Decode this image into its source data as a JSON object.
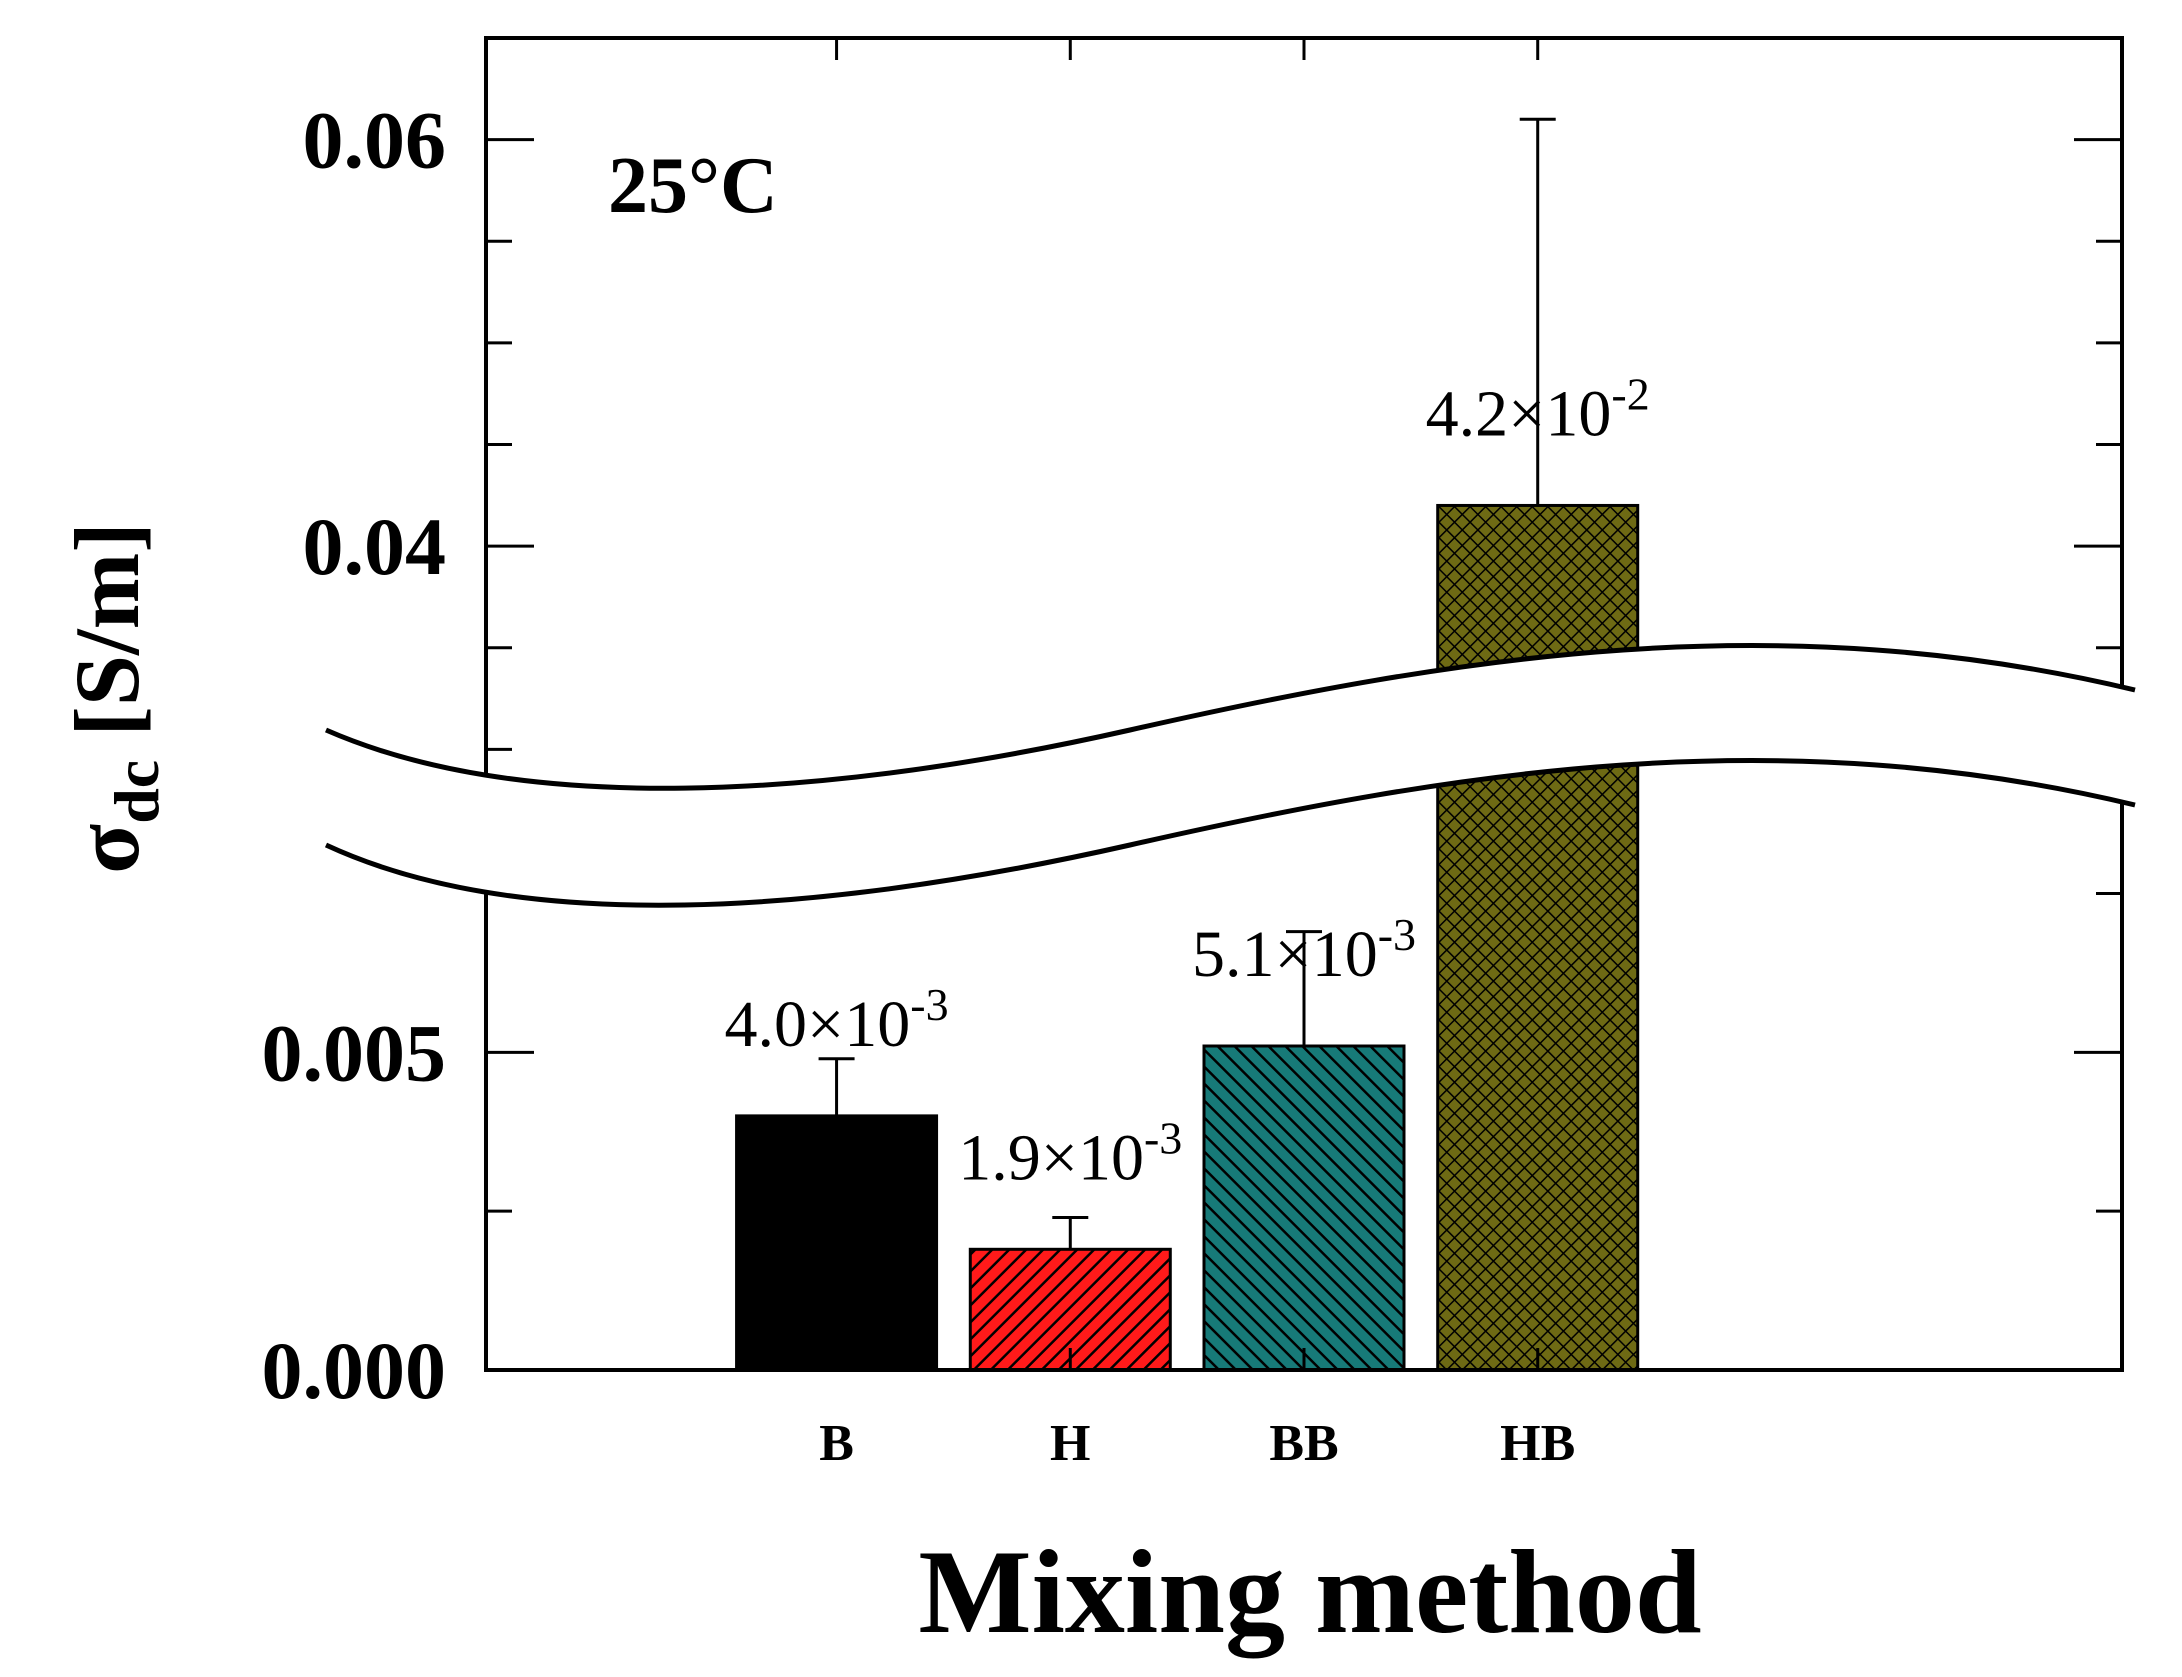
{
  "chart_data": {
    "type": "bar",
    "categories": [
      "B",
      "H",
      "BB",
      "HB"
    ],
    "values": [
      0.004,
      0.0019,
      0.0051,
      0.042
    ],
    "error_upper": [
      0.0049,
      0.0024,
      0.0069,
      0.061
    ],
    "data_labels": [
      {
        "mantissa": "4.0×10",
        "exponent": "-3"
      },
      {
        "mantissa": "1.9×10",
        "exponent": "-3"
      },
      {
        "mantissa": "5.1×10",
        "exponent": "-3"
      },
      {
        "mantissa": "4.2×10",
        "exponent": "-2"
      }
    ],
    "colors": [
      "#000000",
      "#ff1a1a",
      "#177a78",
      "#6e6a14"
    ],
    "fill_patterns": [
      "solid",
      "diagonal-hatch",
      "diagonal-hatch",
      "crosshatch"
    ],
    "annotation": "25°C",
    "xlabel": "Mixing method",
    "ylabel": {
      "symbol": "σ",
      "subscript": "dc",
      "unit": " [S/m]"
    },
    "ytick_labels_lower": [
      "0.000",
      "0.005"
    ],
    "ytick_labels_upper": [
      "0.04",
      "0.06"
    ],
    "ylim_lower": [
      0,
      0.0085
    ],
    "ylim_upper": [
      0.028,
      0.065
    ],
    "axis_break": true,
    "grid": false
  }
}
